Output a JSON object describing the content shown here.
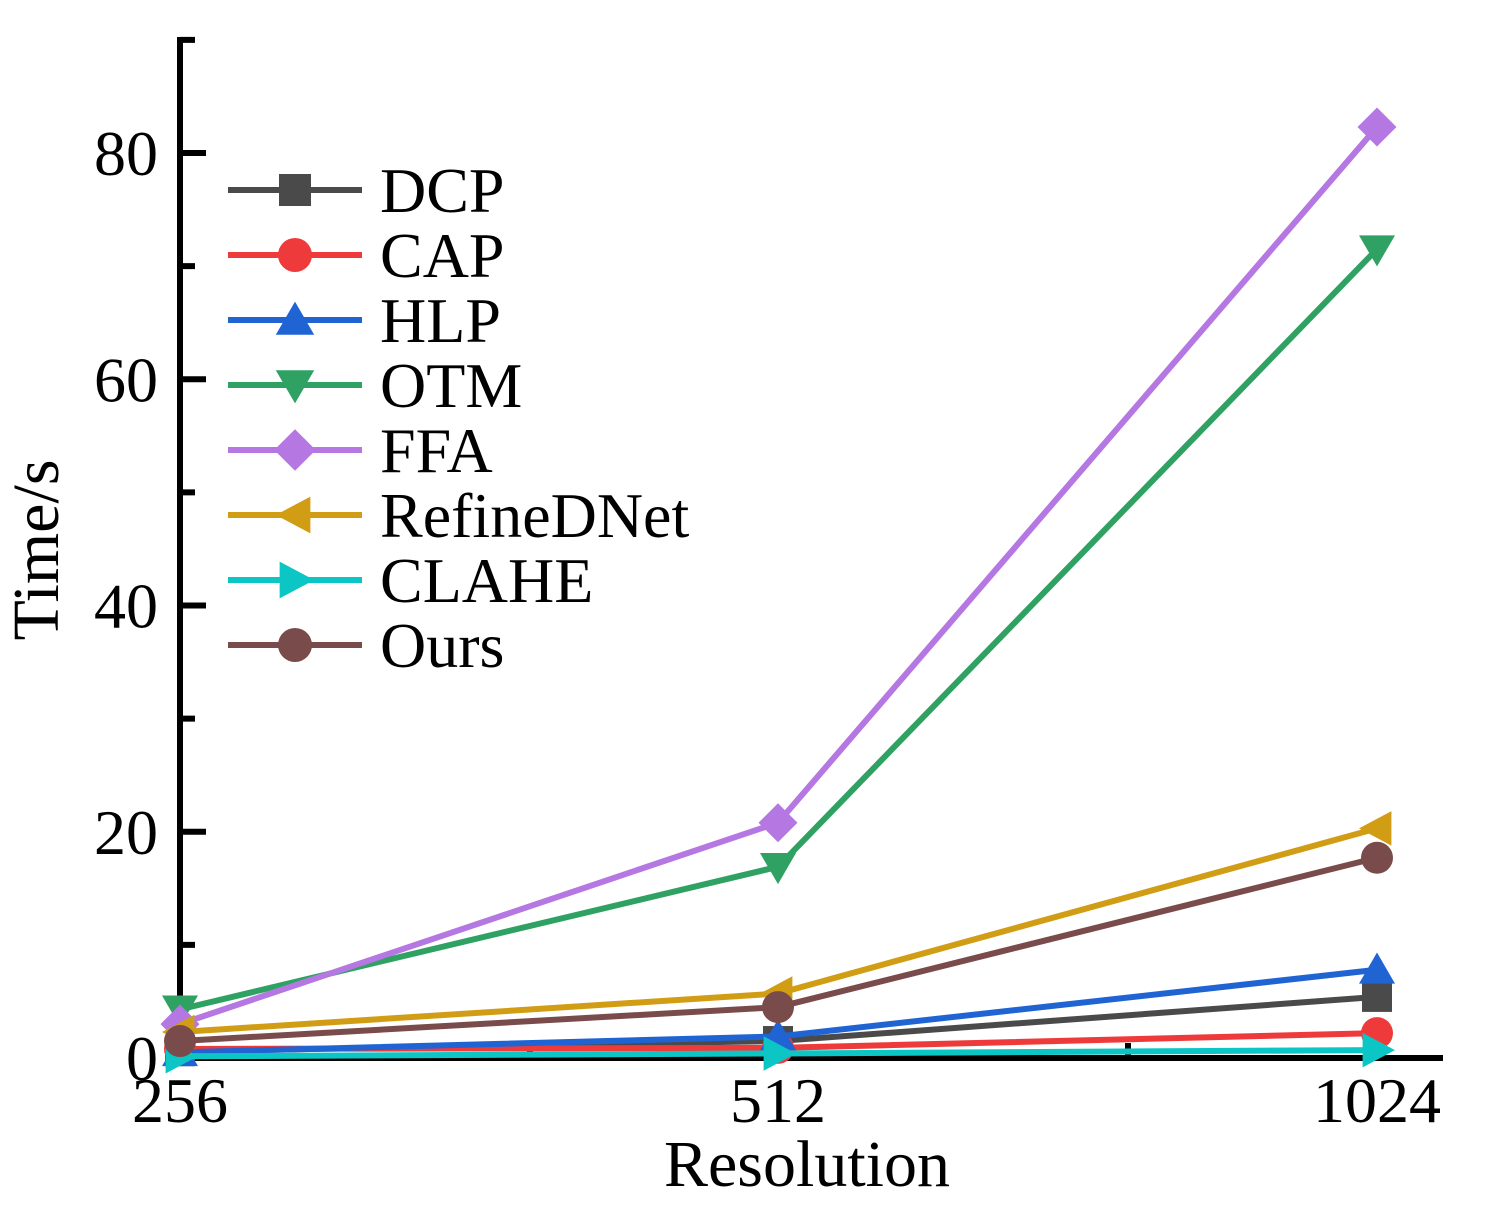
{
  "chart_data": {
    "type": "line",
    "title": "",
    "xlabel": "Resolution",
    "ylabel": "Time/s",
    "categories": [
      "256",
      "512",
      "1024"
    ],
    "x_values_numeric": [
      256,
      512,
      1024
    ],
    "x_scale": "log2-equal-spacing",
    "ylim": [
      0,
      90
    ],
    "yticks_major": [
      0,
      20,
      40,
      60,
      80
    ],
    "yticks_minor": [
      10,
      30,
      50,
      70,
      90
    ],
    "grid": false,
    "legend_position": "upper-left-inside",
    "axis_color": "#000000",
    "series": [
      {
        "name": "DCP",
        "color": "#4a4a4a",
        "marker": "square",
        "values": [
          0.6,
          1.5,
          5.4
        ]
      },
      {
        "name": "CAP",
        "color": "#ee3a3a",
        "marker": "circle",
        "values": [
          0.8,
          0.9,
          2.2
        ]
      },
      {
        "name": "HLP",
        "color": "#2064d4",
        "marker": "triangle-up",
        "values": [
          0.5,
          1.9,
          7.8
        ]
      },
      {
        "name": "OTM",
        "color": "#2fa263",
        "marker": "triangle-down",
        "values": [
          4.3,
          16.9,
          71.5
        ]
      },
      {
        "name": "FFA",
        "color": "#b577e2",
        "marker": "diamond",
        "values": [
          3.0,
          20.8,
          82.3
        ]
      },
      {
        "name": "RefineDNet",
        "color": "#d19d15",
        "marker": "triangle-left",
        "values": [
          2.3,
          5.7,
          20.3
        ]
      },
      {
        "name": "CLAHE",
        "color": "#0cc6c6",
        "marker": "triangle-right",
        "values": [
          0.15,
          0.4,
          0.7
        ]
      },
      {
        "name": "Ours",
        "color": "#7a4b4b",
        "marker": "circle",
        "values": [
          1.5,
          4.5,
          17.7
        ]
      }
    ]
  }
}
